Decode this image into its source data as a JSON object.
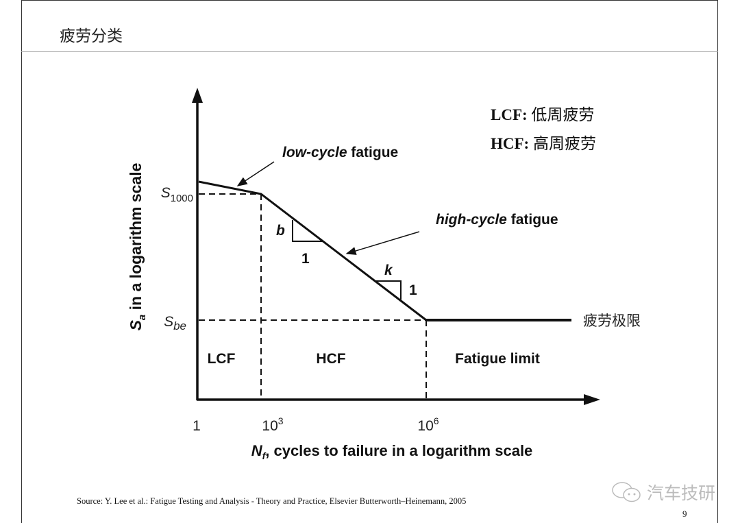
{
  "slide": {
    "title": "疲劳分类",
    "page_number": "9",
    "source": "Source: Y. Lee et al.: Fatigue Testing and Analysis - Theory and Practice, Elsevier Butterworth–Heinemann, 2005",
    "watermark": "汽车技研",
    "legend": [
      {
        "abbr": "LCF:",
        "text": "低周疲劳"
      },
      {
        "abbr": "HCF:",
        "text": "高周疲劳"
      }
    ]
  },
  "diagram": {
    "y_axis_label": {
      "main": "S",
      "sub": "a",
      "rest": " in a logarithm scale"
    },
    "x_axis_label": {
      "main": "N",
      "sub": "f",
      "rest": ", cycles to failure in a logarithm scale"
    },
    "y_ticks": [
      {
        "main": "S",
        "sub": "1000"
      },
      {
        "main": "S",
        "sub": "be"
      }
    ],
    "x_ticks": [
      {
        "base": "1",
        "exp": ""
      },
      {
        "base": "10",
        "exp": "3"
      },
      {
        "base": "10",
        "exp": "6"
      }
    ],
    "regions": [
      "LCF",
      "HCF",
      "Fatigue limit"
    ],
    "annotations": {
      "low_cycle": {
        "italic": "low-cycle",
        "rest": " fatigue"
      },
      "high_cycle": {
        "italic": "high-cycle",
        "rest": " fatigue"
      },
      "slope_b": "b",
      "slope_b_run": "1",
      "slope_k": "k",
      "slope_k_rise": "1",
      "fatigue_limit_cn": "疲劳极限"
    }
  }
}
